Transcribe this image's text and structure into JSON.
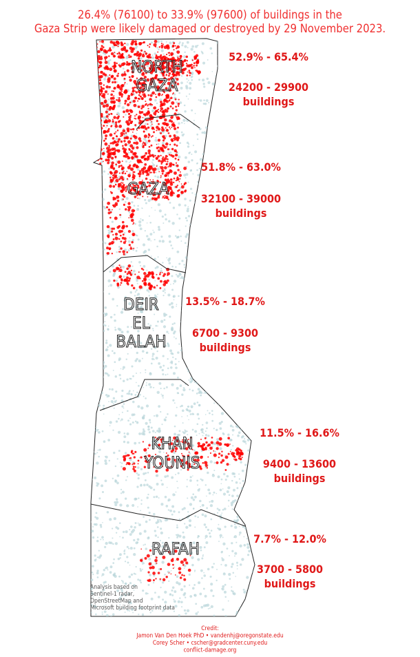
{
  "title": [
    "26.4% (76100) to 33.9% (97600) of buildings in the",
    "Gaza Strip were likely damaged or destroyed by 29 November 2023."
  ],
  "regions": [
    {
      "name": [
        "NORTH",
        "GAZA"
      ],
      "percent": "52.9% - 65.4%",
      "buildings": [
        "24200 - 29900",
        "buildings"
      ]
    },
    {
      "name": [
        "GAZA"
      ],
      "percent": "51.8% - 63.0%",
      "buildings": [
        "32100 - 39000",
        "buildings"
      ]
    },
    {
      "name": [
        "DEIR",
        "EL",
        "BALAH"
      ],
      "percent": "13.5% - 18.7%",
      "buildings": [
        "6700 - 9300",
        "buildings"
      ]
    },
    {
      "name": [
        "KHAN",
        "YOUNIS"
      ],
      "percent": "11.5% - 16.6%",
      "buildings": [
        "9400 - 13600",
        "buildings"
      ]
    },
    {
      "name": [
        "RAFAH"
      ],
      "percent": "7.7% - 12.0%",
      "buildings": [
        "3700 - 5800",
        "buildings"
      ]
    }
  ],
  "note": [
    "Analysis based on",
    "Sentinel-1 radar,",
    "OpenStreetMap and",
    "Microsoft building footprint data"
  ],
  "credit": [
    "Credit:",
    "Jamon Van Den Hoek PhD • vandenhj@oregonstate.edu",
    "Corey Scher • cscher@gradcenter.cuny.edu",
    "conflict-damage.org"
  ]
}
